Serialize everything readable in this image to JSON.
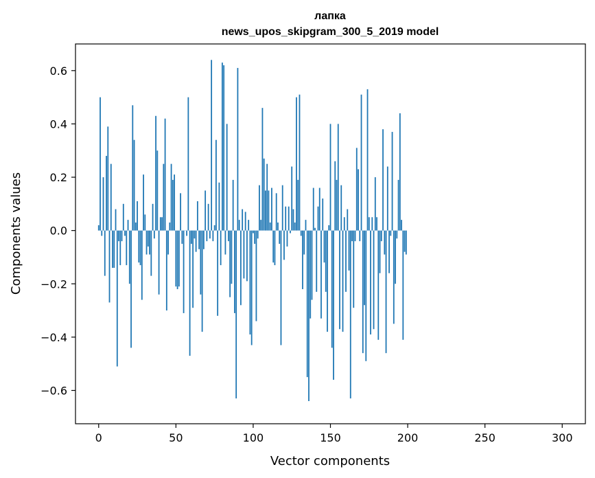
{
  "chart_data": {
    "type": "bar",
    "title": "лапка",
    "subtitle": "news_upos_skipgram_300_5_2019 model",
    "xlabel": "Vector components",
    "ylabel": "Components values",
    "xlim": [
      -15,
      315
    ],
    "ylim": [
      -0.725,
      0.7
    ],
    "xticks": [
      0,
      50,
      100,
      150,
      200,
      250,
      300
    ],
    "yticks": [
      -0.6,
      -0.4,
      -0.2,
      0.0,
      0.2,
      0.4,
      0.6
    ],
    "ytick_labels": [
      "−0.6",
      "−0.4",
      "−0.2",
      "0.0",
      "0.2",
      "0.4",
      "0.6"
    ],
    "grid": false,
    "bar_color": "#1f77b4",
    "values": [
      0.02,
      0.5,
      -0.02,
      0.2,
      -0.17,
      0.28,
      0.39,
      -0.27,
      0.25,
      -0.14,
      -0.14,
      0.08,
      -0.51,
      -0.04,
      -0.13,
      -0.04,
      0.1,
      -0.02,
      -0.13,
      0.04,
      -0.2,
      -0.44,
      0.47,
      0.34,
      0.03,
      0.11,
      -0.12,
      -0.13,
      -0.26,
      0.21,
      0.06,
      -0.09,
      -0.06,
      -0.09,
      -0.17,
      0.1,
      -0.03,
      0.43,
      0.3,
      -0.24,
      0.05,
      0.05,
      0.25,
      0.42,
      -0.3,
      -0.09,
      0.03,
      0.25,
      0.19,
      0.21,
      -0.21,
      -0.22,
      -0.21,
      0.14,
      -0.05,
      -0.31,
      0.0,
      -0.02,
      0.5,
      -0.47,
      -0.05,
      -0.29,
      -0.03,
      -0.08,
      0.11,
      -0.07,
      -0.24,
      -0.38,
      -0.07,
      0.15,
      -0.04,
      0.1,
      -0.03,
      0.64,
      -0.04,
      0.02,
      0.34,
      -0.32,
      0.18,
      -0.13,
      0.63,
      0.62,
      -0.09,
      0.4,
      -0.04,
      -0.25,
      -0.2,
      0.19,
      -0.31,
      -0.63,
      0.61,
      0.04,
      -0.28,
      0.08,
      -0.18,
      0.07,
      -0.19,
      0.04,
      -0.39,
      -0.43,
      -0.01,
      -0.05,
      -0.34,
      -0.03,
      0.17,
      0.04,
      0.46,
      0.27,
      0.15,
      0.25,
      0.15,
      0.03,
      0.16,
      -0.12,
      -0.13,
      0.14,
      0.03,
      -0.05,
      -0.43,
      0.17,
      -0.11,
      0.09,
      -0.06,
      0.09,
      -0.01,
      0.24,
      0.08,
      0.03,
      0.5,
      0.19,
      0.51,
      -0.02,
      -0.22,
      -0.09,
      0.04,
      -0.55,
      -0.64,
      -0.33,
      -0.26,
      0.16,
      0.01,
      -0.23,
      0.09,
      0.16,
      -0.33,
      0.12,
      -0.12,
      -0.23,
      -0.38,
      0.02,
      0.4,
      -0.44,
      -0.56,
      0.26,
      0.19,
      0.4,
      -0.37,
      0.17,
      -0.38,
      0.05,
      -0.23,
      0.08,
      -0.15,
      -0.63,
      -0.04,
      -0.29,
      -0.04,
      0.31,
      0.23,
      -0.04,
      0.51,
      -0.46,
      -0.28,
      -0.49,
      0.53,
      0.05,
      -0.39,
      0.05,
      -0.37,
      0.2,
      0.05,
      -0.41,
      -0.16,
      -0.04,
      0.38,
      -0.09,
      -0.46,
      0.24,
      -0.16,
      -0.02,
      0.37,
      -0.35,
      -0.2,
      -0.03,
      0.19,
      0.44,
      0.04,
      -0.41,
      -0.08,
      -0.09
    ]
  }
}
